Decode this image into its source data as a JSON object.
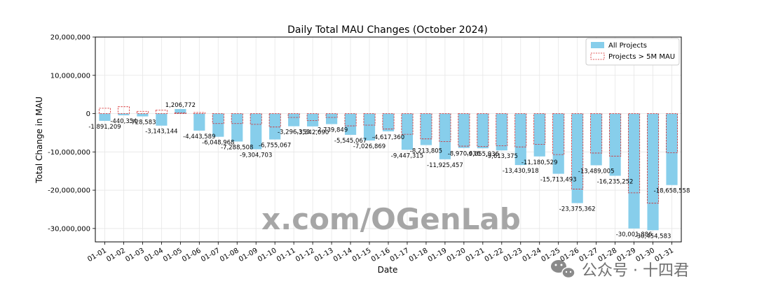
{
  "chart_data": {
    "type": "bar",
    "title": "Daily Total MAU Changes (October 2024)",
    "xlabel": "Date",
    "ylabel": "Total Change in MAU",
    "ylim": [
      -33500000,
      20000000
    ],
    "yticks": [
      20000000,
      10000000,
      0,
      -10000000,
      -20000000,
      -30000000
    ],
    "ytick_labels": [
      "20,000,000",
      "10,000,000",
      "0",
      "-10,000,000",
      "-20,000,000",
      "-30,000,000"
    ],
    "grid": true,
    "legend_position": "top-right",
    "categories": [
      "01-01",
      "01-02",
      "01-03",
      "01-04",
      "01-05",
      "01-06",
      "01-07",
      "01-08",
      "01-09",
      "01-10",
      "01-11",
      "01-12",
      "01-13",
      "01-14",
      "01-15",
      "01-16",
      "01-17",
      "01-18",
      "01-19",
      "01-20",
      "01-21",
      "01-22",
      "01-23",
      "01-24",
      "01-25",
      "01-26",
      "01-27",
      "01-28",
      "01-29",
      "01-30",
      "01-31"
    ],
    "series": [
      {
        "name": "All Projects",
        "color": "#87ceeb",
        "values": [
          -1891209,
          -440354,
          -728583,
          -3143144,
          1206772,
          -4443589,
          -6048968,
          -7288508,
          -9304703,
          -6755067,
          -3296353,
          -3342090,
          -2739849,
          -5545067,
          -7026869,
          -4617360,
          -9447315,
          -8213805,
          -11925457,
          -8970636,
          -9055936,
          -9613375,
          -13430918,
          -11180529,
          -15713493,
          -23375362,
          -13489005,
          -16235252,
          -30001886,
          -30454583,
          -18658558
        ],
        "labels": [
          "-1,891,209",
          "-440,354",
          "-728,583",
          "-3,143,144",
          "1,206,772",
          "-4,443,589",
          "-6,048,968",
          "-7,288,508",
          "-9,304,703",
          "-6,755,067",
          "-3,296,353",
          "-3,342,090",
          "-2,739,849",
          "-5,545,067",
          "-7,026,869",
          "-4,617,360",
          "-9,447,315",
          "-8,213,805",
          "-11,925,457",
          "-8,970,636",
          "-9,055,936",
          "-9,613,375",
          "-13,430,918",
          "-11,180,529",
          "-15,713,493",
          "-23,375,362",
          "-13,489,005",
          "-16,235,252",
          "-30,001,886",
          "-30,454,583",
          "-18,658,558"
        ]
      },
      {
        "name": "Projects > 5M MAU",
        "color": "#d62728",
        "style": "dashed-outline",
        "values": [
          1400000,
          1800000,
          600000,
          900000,
          200000,
          300000,
          -2600000,
          -2600000,
          -2800000,
          -3500000,
          -1000000,
          -1800000,
          -1000000,
          -3200000,
          -3000000,
          -4000000,
          -5400000,
          -6600000,
          -7300000,
          -8500000,
          -8600000,
          -8400000,
          -8700000,
          -8000000,
          -10700000,
          -19700000,
          -10300000,
          -11100000,
          -20700000,
          -23400000,
          -10200000
        ]
      }
    ]
  },
  "watermark": {
    "text": "x.com/OGenLab",
    "color": "#a6a6a6"
  },
  "social_badge": {
    "text": "公众号 · 十四君",
    "icon": "wechat-icon",
    "color": "#707070"
  }
}
